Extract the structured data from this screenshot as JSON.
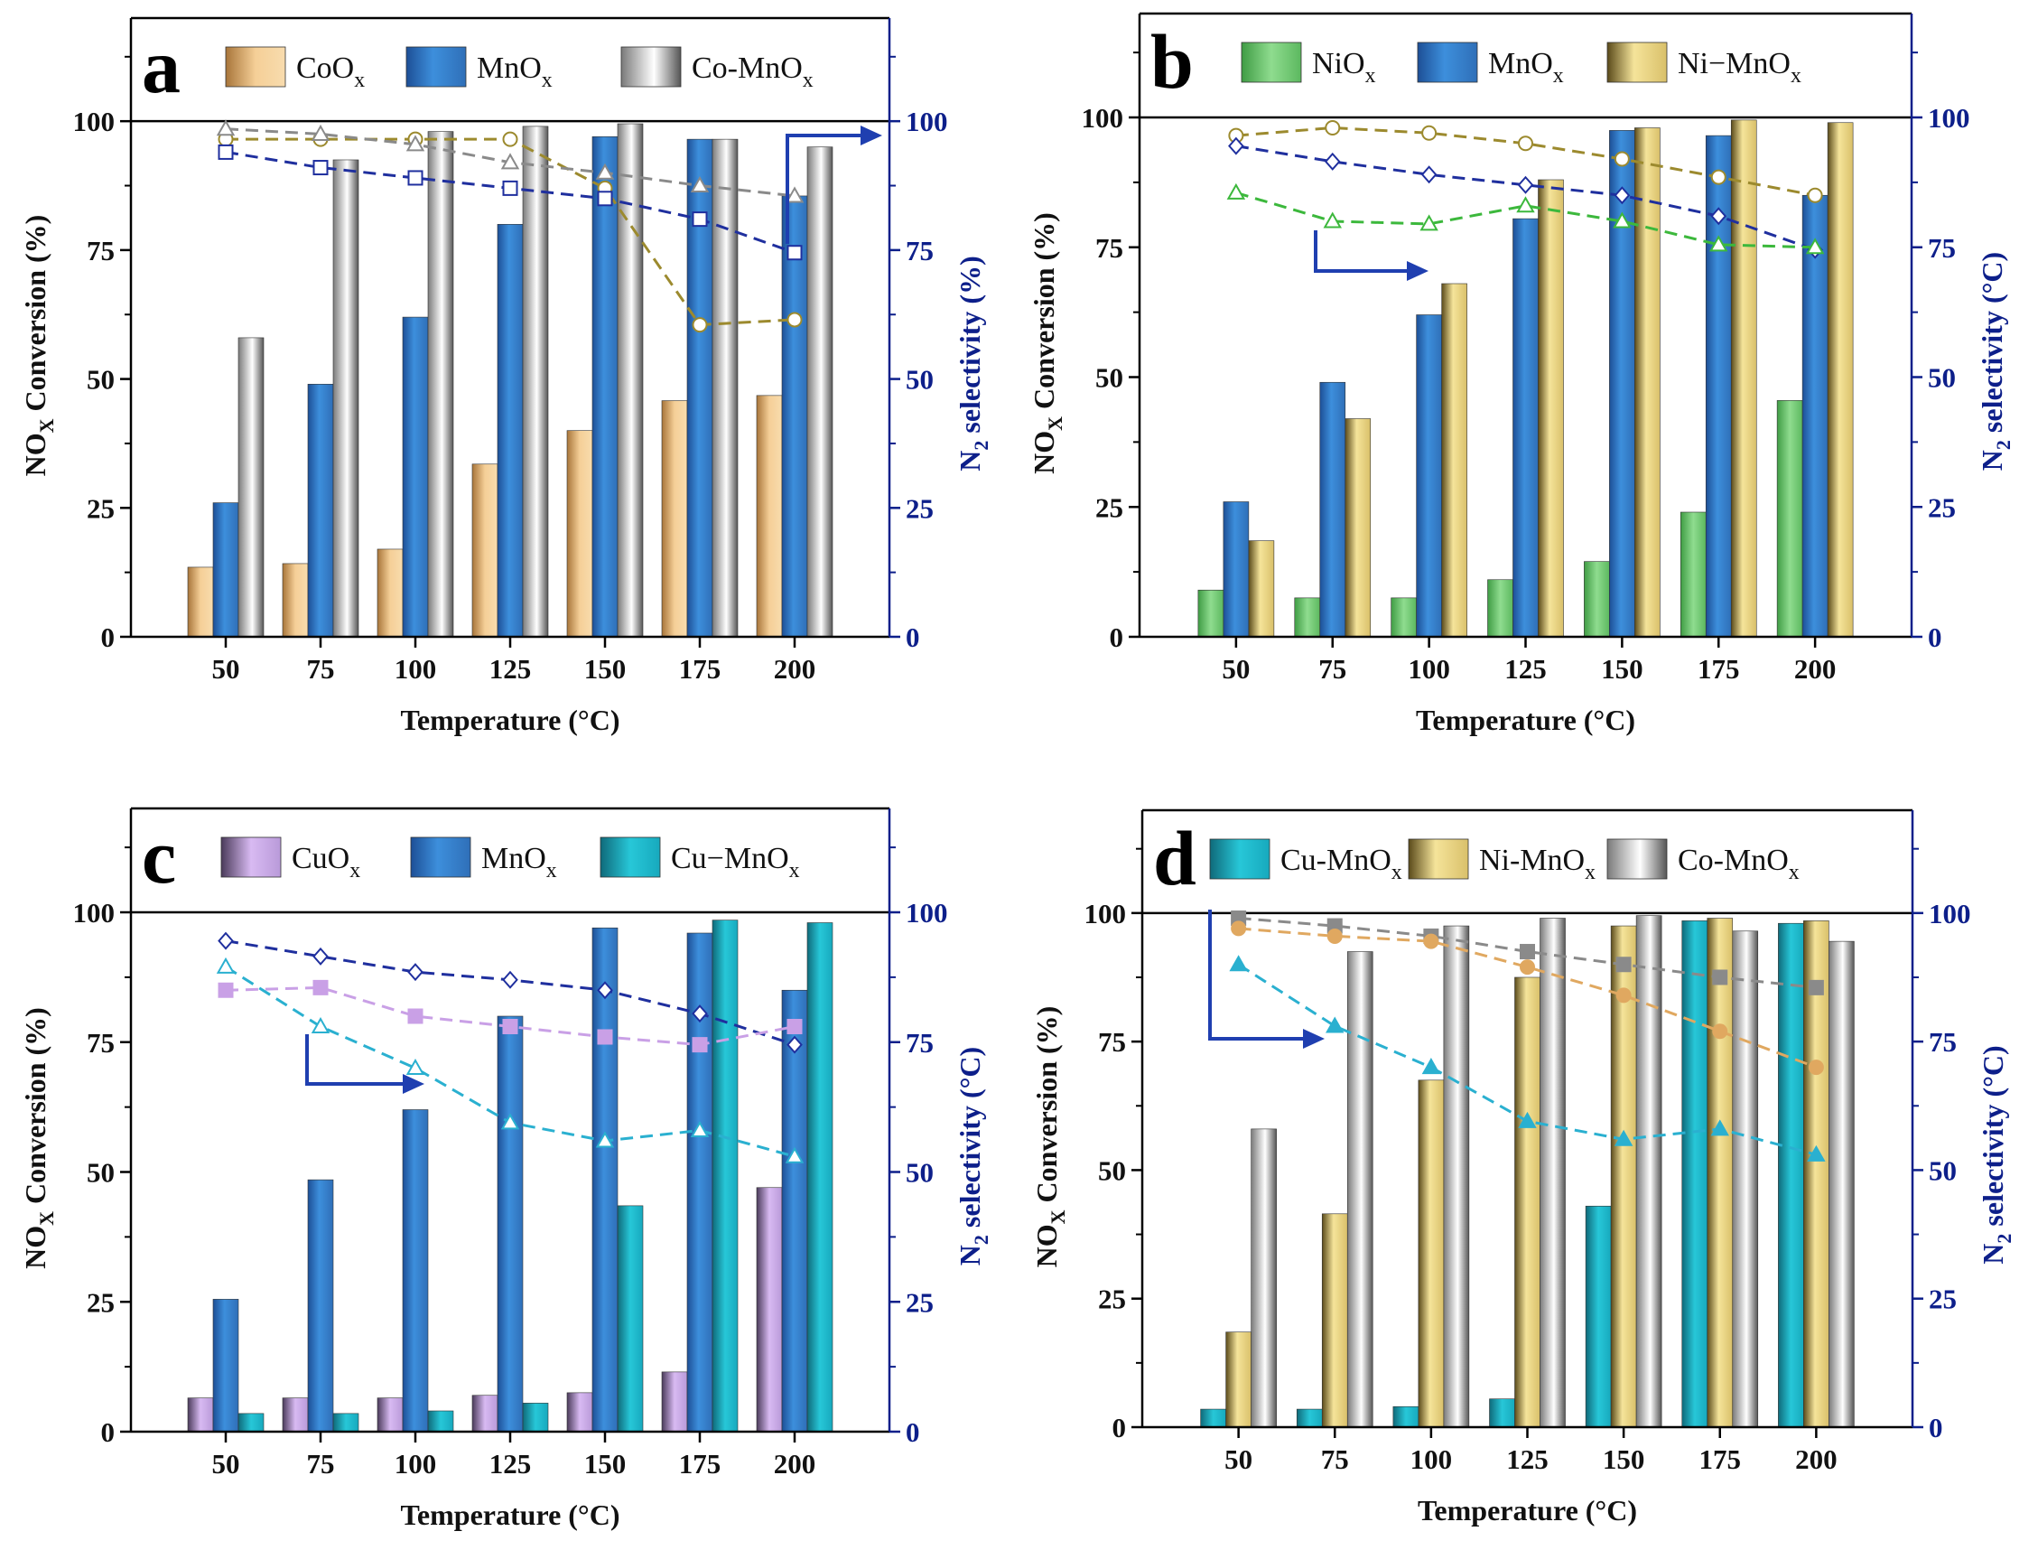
{
  "chart_data": [
    {
      "panel": "a",
      "type": "bar+line",
      "xlabel": "Temperature (°C)",
      "ylabel": "NOX Conversion (%)",
      "y2label": "N2 selectivity (%)",
      "ylim": [
        0,
        120
      ],
      "y2lim": [
        0,
        120
      ],
      "yticks": [
        0,
        25,
        50,
        75,
        100
      ],
      "categories": [
        "50",
        "75",
        "100",
        "125",
        "150",
        "175",
        "200"
      ],
      "series": [
        {
          "name": "CoOx",
          "color": "#e8c08a",
          "values": [
            13.5,
            14.2,
            17,
            33.5,
            40,
            45.8,
            46.8
          ]
        },
        {
          "name": "MnOx",
          "color": "#3a86d0",
          "values": [
            26,
            49,
            62,
            80,
            97,
            96.5,
            85.5
          ]
        },
        {
          "name": "Co-MnOx",
          "color": "#c8c8c8",
          "values": [
            58,
            92.5,
            98,
            99,
            99.5,
            96.5,
            95
          ]
        }
      ],
      "selectivity": [
        {
          "name": "CoOx",
          "color": "#9c8a2e",
          "marker": "circle-open",
          "values": [
            96.5,
            96.5,
            96.5,
            96.5,
            87,
            60.5,
            61.5
          ]
        },
        {
          "name": "MnOx",
          "color": "#1f2f9e",
          "marker": "square-open",
          "values": [
            94,
            91,
            89,
            87,
            85,
            81,
            74.5
          ]
        },
        {
          "name": "Co-MnOx",
          "color": "#8a8a8a",
          "marker": "triangle-open",
          "values": [
            98.5,
            97.5,
            95.5,
            92,
            90,
            87.5,
            85.5
          ]
        }
      ]
    },
    {
      "panel": "b",
      "type": "bar+line",
      "xlabel": "Temperature (°C)",
      "ylabel": "NOX Conversion (%)",
      "y2label": "N2 selectivity (°C)",
      "ylim": [
        0,
        120
      ],
      "y2lim": [
        0,
        120
      ],
      "yticks": [
        0,
        25,
        50,
        75,
        100
      ],
      "categories": [
        "50",
        "75",
        "100",
        "125",
        "150",
        "175",
        "200"
      ],
      "series": [
        {
          "name": "NiOx",
          "color": "#6dc46d",
          "values": [
            9,
            7.5,
            7.5,
            11,
            14.5,
            24,
            45.5
          ]
        },
        {
          "name": "MnOx",
          "color": "#3a86d0",
          "values": [
            26,
            49,
            62,
            80.5,
            97.5,
            96.5,
            85
          ]
        },
        {
          "name": "Ni−MnOx",
          "color": "#ecdc8c",
          "values": [
            18.5,
            42,
            68,
            88,
            98,
            99.5,
            99
          ]
        }
      ],
      "selectivity": [
        {
          "name": "Ni-MnOx",
          "color": "#9c8a2e",
          "marker": "circle-open",
          "values": [
            96.5,
            98,
            97,
            95,
            92,
            88.5,
            85
          ]
        },
        {
          "name": "MnOx",
          "color": "#1f2f9e",
          "marker": "diamond-open",
          "values": [
            94.5,
            91.5,
            89,
            87,
            85,
            81,
            74.5
          ]
        },
        {
          "name": "NiOx",
          "color": "#3cb83c",
          "marker": "triangle-open",
          "values": [
            85.5,
            80,
            79.5,
            83,
            80,
            75.5,
            75
          ]
        }
      ]
    },
    {
      "panel": "c",
      "type": "bar+line",
      "xlabel": "Temperature (°C)",
      "ylabel": "NOX Conversion (%)",
      "y2label": "N2 selectivity (°C)",
      "ylim": [
        0,
        120
      ],
      "y2lim": [
        0,
        120
      ],
      "yticks": [
        0,
        25,
        50,
        75,
        100
      ],
      "categories": [
        "50",
        "75",
        "100",
        "125",
        "150",
        "175",
        "200"
      ],
      "series": [
        {
          "name": "CuOx",
          "color": "#c9aee6",
          "values": [
            6.5,
            6.5,
            6.5,
            7,
            7.5,
            11.5,
            47
          ]
        },
        {
          "name": "MnOx",
          "color": "#3a86d0",
          "values": [
            25.5,
            48.5,
            62,
            80,
            97,
            96,
            85
          ]
        },
        {
          "name": "Cu−MnOx",
          "color": "#1fb8c8",
          "values": [
            3.5,
            3.5,
            4,
            5.5,
            43.5,
            98.5,
            98
          ]
        }
      ],
      "selectivity": [
        {
          "name": "MnOx",
          "color": "#1f2f9e",
          "marker": "diamond-open",
          "values": [
            94.5,
            91.5,
            88.5,
            87,
            85,
            80.5,
            74.5
          ]
        },
        {
          "name": "CuOx",
          "color": "#c9a0e6",
          "marker": "square-filled",
          "values": [
            85,
            85.5,
            80,
            78,
            76,
            74.5,
            78
          ]
        },
        {
          "name": "Cu−MnOx",
          "color": "#2ab0d0",
          "marker": "triangle-open",
          "values": [
            89.5,
            78,
            70,
            59.5,
            56,
            58,
            53
          ]
        }
      ]
    },
    {
      "panel": "d",
      "type": "bar+line",
      "xlabel": "Temperature (°C)",
      "ylabel": "NOX Conversion (%)",
      "y2label": "N2 selectivity (°C)",
      "ylim": [
        0,
        120
      ],
      "y2lim": [
        0,
        120
      ],
      "yticks": [
        0,
        25,
        50,
        75,
        100
      ],
      "categories": [
        "50",
        "75",
        "100",
        "125",
        "150",
        "175",
        "200"
      ],
      "series": [
        {
          "name": "Cu-MnOx",
          "color": "#1fb8c8",
          "values": [
            3.5,
            3.5,
            4,
            5.5,
            43,
            98.5,
            98
          ]
        },
        {
          "name": "Ni-MnOx",
          "color": "#ecdc8c",
          "values": [
            18.5,
            41.5,
            67.5,
            87.5,
            97.5,
            99,
            98.5
          ]
        },
        {
          "name": "Co-MnOx",
          "color": "#c8c8c8",
          "values": [
            58,
            92.5,
            97.5,
            99,
            99.5,
            96.5,
            94.5
          ]
        }
      ],
      "selectivity": [
        {
          "name": "Co-MnOx",
          "color": "#8a8a8a",
          "marker": "square-filled",
          "values": [
            99,
            97.5,
            95.5,
            92.5,
            90,
            87.5,
            85.5
          ]
        },
        {
          "name": "Ni-MnOx",
          "color": "#e0a860",
          "marker": "circle-filled",
          "values": [
            97,
            95.5,
            94.5,
            89.5,
            84,
            77,
            70
          ]
        },
        {
          "name": "Cu-MnOx",
          "color": "#2ab0d0",
          "marker": "triangle-filled",
          "values": [
            90,
            78,
            70,
            59.5,
            56,
            58,
            53
          ]
        }
      ]
    }
  ]
}
